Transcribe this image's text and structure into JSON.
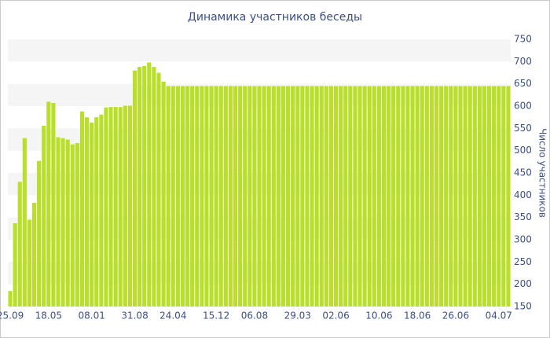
{
  "chart_data": {
    "type": "bar",
    "title": "Динамика участников беседы",
    "y_label": "Число участников",
    "color": "#b9df2b",
    "grid": true,
    "categories": [
      "25.09",
      null,
      null,
      null,
      null,
      null,
      null,
      null,
      "18.05",
      null,
      null,
      null,
      null,
      null,
      null,
      null,
      null,
      "08.01",
      null,
      null,
      null,
      null,
      null,
      null,
      null,
      null,
      "31.08",
      null,
      null,
      null,
      null,
      null,
      null,
      null,
      "24.04",
      null,
      null,
      null,
      null,
      null,
      null,
      null,
      null,
      "15.12",
      null,
      null,
      null,
      null,
      null,
      null,
      null,
      "06.08",
      null,
      null,
      null,
      null,
      null,
      null,
      null,
      null,
      "29.03",
      null,
      null,
      null,
      null,
      null,
      null,
      null,
      "02.06",
      null,
      null,
      null,
      null,
      null,
      null,
      null,
      null,
      "10.06",
      null,
      null,
      null,
      null,
      null,
      null,
      null,
      "18.06",
      null,
      null,
      null,
      null,
      null,
      null,
      null,
      "26.06",
      null,
      null,
      null,
      null,
      null,
      null,
      null,
      null,
      "04.07",
      null,
      null
    ],
    "values": [
      185,
      337,
      430,
      528,
      345,
      383,
      477,
      556,
      610,
      607,
      530,
      528,
      525,
      514,
      517,
      588,
      575,
      563,
      575,
      581,
      597,
      598,
      598,
      598,
      601,
      601,
      680,
      688,
      690,
      698,
      688,
      675,
      655,
      645,
      645,
      645,
      645,
      645,
      645,
      645,
      645,
      645,
      645,
      645,
      645,
      645,
      645,
      645,
      645,
      645,
      645,
      645,
      645,
      645,
      645,
      645,
      645,
      645,
      645,
      645,
      645,
      645,
      645,
      645,
      645,
      645,
      645,
      645,
      645,
      645,
      645,
      645,
      645,
      645,
      645,
      645,
      645,
      645,
      645,
      645,
      645,
      645,
      645,
      645,
      645,
      645,
      645,
      645,
      645,
      645,
      645,
      645,
      645,
      645,
      645,
      645,
      645,
      645,
      645,
      645,
      645,
      645,
      645,
      645,
      645
    ],
    "ylim": [
      150,
      750
    ],
    "yticks": [
      150,
      200,
      250,
      300,
      350,
      400,
      450,
      500,
      550,
      600,
      650,
      700,
      750
    ]
  }
}
